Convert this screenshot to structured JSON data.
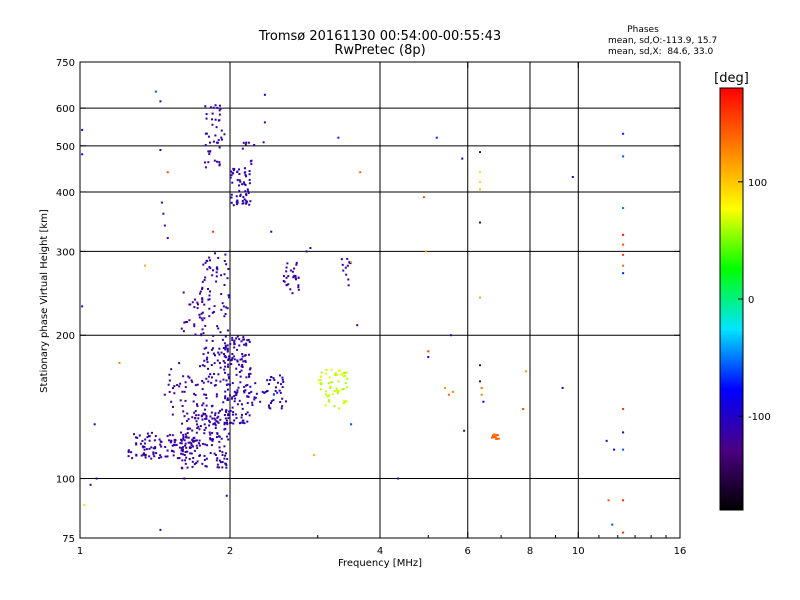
{
  "chart_data": {
    "type": "scatter",
    "title": "Tromsø 20161130 00:54:00-00:55:43",
    "subtitle": "RwPretec (8p)",
    "xlabel": "Frequency [MHz]",
    "ylabel": "Stationary phase Virtual Height [km]",
    "x_scale": "log",
    "y_scale": "log",
    "xlim": [
      1,
      16
    ],
    "ylim": [
      75,
      750
    ],
    "x_ticks": [
      1,
      2,
      4,
      6,
      8,
      10,
      16
    ],
    "y_ticks": [
      75,
      100,
      200,
      300,
      400,
      500,
      600,
      750
    ],
    "grid": true,
    "stats": {
      "heading": "Phases",
      "line_o": "mean, sd,O:-113.9, 15.7",
      "line_x": "mean, sd,X:  84.6, 33.0"
    },
    "colorbar": {
      "label": "[deg]",
      "range": [
        -180,
        180
      ],
      "ticks": [
        -100,
        0,
        100
      ],
      "colors": [
        "#000000",
        "#4b0082",
        "#0000ff",
        "#00e5ff",
        "#00ff00",
        "#ffff00",
        "#ff7f00",
        "#ff0000"
      ]
    },
    "clusters": [
      {
        "x": [
          1.25,
          1.7
        ],
        "y": [
          110,
          125
        ],
        "n": 120,
        "phase": -115
      },
      {
        "x": [
          1.6,
          2.0
        ],
        "y": [
          105,
          140
        ],
        "n": 150,
        "phase": -115
      },
      {
        "x": [
          1.5,
          1.85
        ],
        "y": [
          135,
          175
        ],
        "n": 50,
        "phase": -118
      },
      {
        "x": [
          1.75,
          2.0
        ],
        "y": [
          130,
          300
        ],
        "n": 140,
        "phase": -112
      },
      {
        "x": [
          1.95,
          2.2
        ],
        "y": [
          130,
          200
        ],
        "n": 140,
        "phase": -110
      },
      {
        "x": [
          2.2,
          2.6
        ],
        "y": [
          140,
          165
        ],
        "n": 45,
        "phase": -108
      },
      {
        "x": [
          1.6,
          1.78
        ],
        "y": [
          200,
          255
        ],
        "n": 25,
        "phase": -120
      },
      {
        "x": [
          1.78,
          1.95
        ],
        "y": [
          450,
          610
        ],
        "n": 45,
        "phase": -112
      },
      {
        "x": [
          2.0,
          2.2
        ],
        "y": [
          375,
          450
        ],
        "n": 60,
        "phase": -110
      },
      {
        "x": [
          2.12,
          2.4
        ],
        "y": [
          450,
          510
        ],
        "n": 10,
        "phase": -112
      },
      {
        "x": [
          2.55,
          2.75
        ],
        "y": [
          245,
          285
        ],
        "n": 28,
        "phase": -115
      },
      {
        "x": [
          3.3,
          3.5
        ],
        "y": [
          250,
          290
        ],
        "n": 12,
        "phase": -110
      },
      {
        "x": [
          3.0,
          3.45
        ],
        "y": [
          140,
          170
        ],
        "n": 55,
        "phase": 65
      },
      {
        "x": [
          6.7,
          6.95
        ],
        "y": [
          121,
          124
        ],
        "n": 14,
        "phase": 140
      }
    ],
    "points": [
      {
        "x": 1.01,
        "y": 540,
        "phase": -120
      },
      {
        "x": 1.01,
        "y": 480,
        "phase": -100
      },
      {
        "x": 1.01,
        "y": 230,
        "phase": -110
      },
      {
        "x": 1.05,
        "y": 97,
        "phase": -115
      },
      {
        "x": 1.08,
        "y": 100,
        "phase": -110
      },
      {
        "x": 1.07,
        "y": 130,
        "phase": -115
      },
      {
        "x": 1.02,
        "y": 88,
        "phase": 90
      },
      {
        "x": 1.2,
        "y": 175,
        "phase": 130
      },
      {
        "x": 1.35,
        "y": 280,
        "phase": 110
      },
      {
        "x": 1.42,
        "y": 650,
        "phase": -60
      },
      {
        "x": 1.45,
        "y": 620,
        "phase": -115
      },
      {
        "x": 1.45,
        "y": 490,
        "phase": -110
      },
      {
        "x": 1.46,
        "y": 380,
        "phase": -120
      },
      {
        "x": 1.47,
        "y": 360,
        "phase": -115
      },
      {
        "x": 1.48,
        "y": 340,
        "phase": -118
      },
      {
        "x": 1.5,
        "y": 320,
        "phase": -112
      },
      {
        "x": 1.5,
        "y": 440,
        "phase": 150
      },
      {
        "x": 1.48,
        "y": 150,
        "phase": -110
      },
      {
        "x": 1.45,
        "y": 78,
        "phase": -115
      },
      {
        "x": 1.62,
        "y": 100,
        "phase": -120
      },
      {
        "x": 1.85,
        "y": 330,
        "phase": 160
      },
      {
        "x": 1.97,
        "y": 92,
        "phase": -110
      },
      {
        "x": 1.95,
        "y": 255,
        "phase": -115
      },
      {
        "x": 2.35,
        "y": 640,
        "phase": -80
      },
      {
        "x": 2.35,
        "y": 560,
        "phase": -112
      },
      {
        "x": 2.42,
        "y": 330,
        "phase": -115
      },
      {
        "x": 2.45,
        "y": 150,
        "phase": -60
      },
      {
        "x": 2.85,
        "y": 300,
        "phase": -118
      },
      {
        "x": 2.9,
        "y": 305,
        "phase": -110
      },
      {
        "x": 2.95,
        "y": 112,
        "phase": 110
      },
      {
        "x": 3.3,
        "y": 520,
        "phase": -70
      },
      {
        "x": 3.5,
        "y": 130,
        "phase": -60
      },
      {
        "x": 3.6,
        "y": 210,
        "phase": -115
      },
      {
        "x": 3.65,
        "y": 440,
        "phase": 140
      },
      {
        "x": 3.5,
        "y": 285,
        "phase": 110
      },
      {
        "x": 4.35,
        "y": 100,
        "phase": -110
      },
      {
        "x": 4.95,
        "y": 300,
        "phase": 120
      },
      {
        "x": 4.9,
        "y": 390,
        "phase": 150
      },
      {
        "x": 5.0,
        "y": 185,
        "phase": 160
      },
      {
        "x": 5.0,
        "y": 180,
        "phase": -100
      },
      {
        "x": 5.2,
        "y": 520,
        "phase": -70
      },
      {
        "x": 5.4,
        "y": 155,
        "phase": 120
      },
      {
        "x": 5.5,
        "y": 150,
        "phase": 140
      },
      {
        "x": 5.55,
        "y": 200,
        "phase": -115
      },
      {
        "x": 5.6,
        "y": 152,
        "phase": 130
      },
      {
        "x": 5.85,
        "y": 470,
        "phase": -110
      },
      {
        "x": 5.9,
        "y": 126,
        "phase": -120
      },
      {
        "x": 6.35,
        "y": 485,
        "phase": -115
      },
      {
        "x": 6.35,
        "y": 440,
        "phase": 90
      },
      {
        "x": 6.35,
        "y": 420,
        "phase": 90
      },
      {
        "x": 6.35,
        "y": 405,
        "phase": 105
      },
      {
        "x": 6.35,
        "y": 345,
        "phase": -110
      },
      {
        "x": 6.35,
        "y": 240,
        "phase": 110
      },
      {
        "x": 6.35,
        "y": 173,
        "phase": -115
      },
      {
        "x": 6.35,
        "y": 160,
        "phase": -112
      },
      {
        "x": 6.4,
        "y": 155,
        "phase": 140
      },
      {
        "x": 6.4,
        "y": 150,
        "phase": 130
      },
      {
        "x": 6.45,
        "y": 145,
        "phase": -80
      },
      {
        "x": 7.75,
        "y": 140,
        "phase": 150
      },
      {
        "x": 7.85,
        "y": 168,
        "phase": 120
      },
      {
        "x": 9.3,
        "y": 155,
        "phase": -100
      },
      {
        "x": 9.75,
        "y": 430,
        "phase": -115
      },
      {
        "x": 11.4,
        "y": 120,
        "phase": -110
      },
      {
        "x": 11.5,
        "y": 90,
        "phase": 150
      },
      {
        "x": 11.7,
        "y": 80,
        "phase": -60
      },
      {
        "x": 11.8,
        "y": 115,
        "phase": -80
      },
      {
        "x": 12.3,
        "y": 530,
        "phase": -70
      },
      {
        "x": 12.3,
        "y": 475,
        "phase": -60
      },
      {
        "x": 12.3,
        "y": 370,
        "phase": -50
      },
      {
        "x": 12.3,
        "y": 325,
        "phase": 170
      },
      {
        "x": 12.3,
        "y": 310,
        "phase": 150
      },
      {
        "x": 12.3,
        "y": 295,
        "phase": 155
      },
      {
        "x": 12.3,
        "y": 280,
        "phase": 140
      },
      {
        "x": 12.3,
        "y": 270,
        "phase": -70
      },
      {
        "x": 12.3,
        "y": 140,
        "phase": 160
      },
      {
        "x": 12.3,
        "y": 125,
        "phase": -110
      },
      {
        "x": 12.3,
        "y": 115,
        "phase": -60
      },
      {
        "x": 12.3,
        "y": 90,
        "phase": 165
      },
      {
        "x": 12.3,
        "y": 77,
        "phase": 160
      }
    ]
  }
}
